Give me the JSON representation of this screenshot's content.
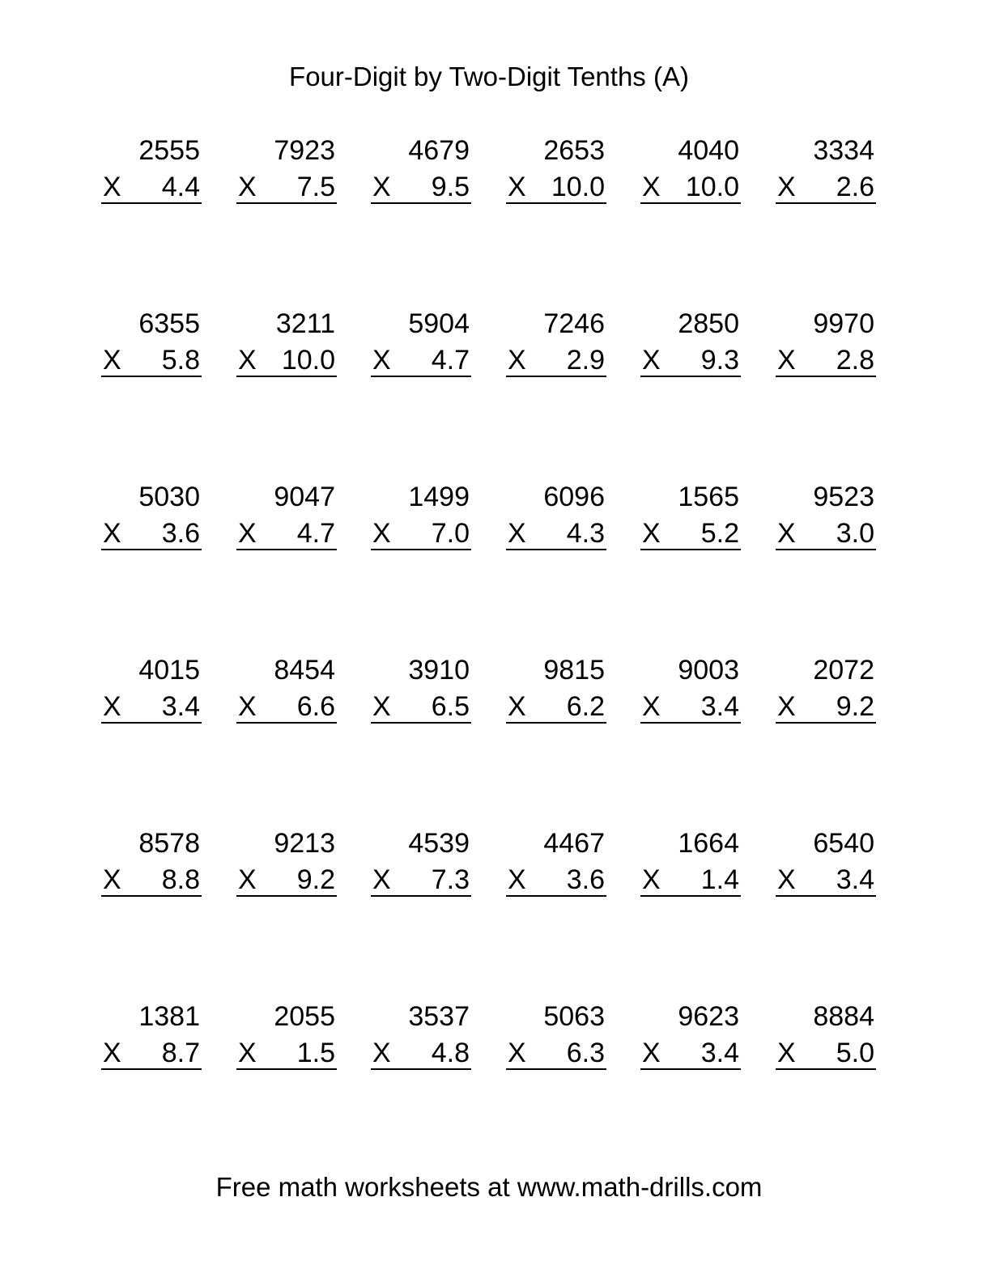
{
  "title": "Four-Digit by Two-Digit Tenths (A)",
  "operator": "X",
  "problems": [
    [
      [
        "2555",
        "4.4"
      ],
      [
        "7923",
        "7.5"
      ],
      [
        "4679",
        "9.5"
      ],
      [
        "2653",
        "10.0"
      ],
      [
        "4040",
        "10.0"
      ],
      [
        "3334",
        "2.6"
      ]
    ],
    [
      [
        "6355",
        "5.8"
      ],
      [
        "3211",
        "10.0"
      ],
      [
        "5904",
        "4.7"
      ],
      [
        "7246",
        "2.9"
      ],
      [
        "2850",
        "9.3"
      ],
      [
        "9970",
        "2.8"
      ]
    ],
    [
      [
        "5030",
        "3.6"
      ],
      [
        "9047",
        "4.7"
      ],
      [
        "1499",
        "7.0"
      ],
      [
        "6096",
        "4.3"
      ],
      [
        "1565",
        "5.2"
      ],
      [
        "9523",
        "3.0"
      ]
    ],
    [
      [
        "4015",
        "3.4"
      ],
      [
        "8454",
        "6.6"
      ],
      [
        "3910",
        "6.5"
      ],
      [
        "9815",
        "6.2"
      ],
      [
        "9003",
        "3.4"
      ],
      [
        "2072",
        "9.2"
      ]
    ],
    [
      [
        "8578",
        "8.8"
      ],
      [
        "9213",
        "9.2"
      ],
      [
        "4539",
        "7.3"
      ],
      [
        "4467",
        "3.6"
      ],
      [
        "1664",
        "1.4"
      ],
      [
        "6540",
        "3.4"
      ]
    ],
    [
      [
        "1381",
        "8.7"
      ],
      [
        "2055",
        "1.5"
      ],
      [
        "3537",
        "4.8"
      ],
      [
        "5063",
        "6.3"
      ],
      [
        "9623",
        "3.4"
      ],
      [
        "8884",
        "5.0"
      ]
    ]
  ],
  "footer": "Free math worksheets at www.math-drills.com"
}
